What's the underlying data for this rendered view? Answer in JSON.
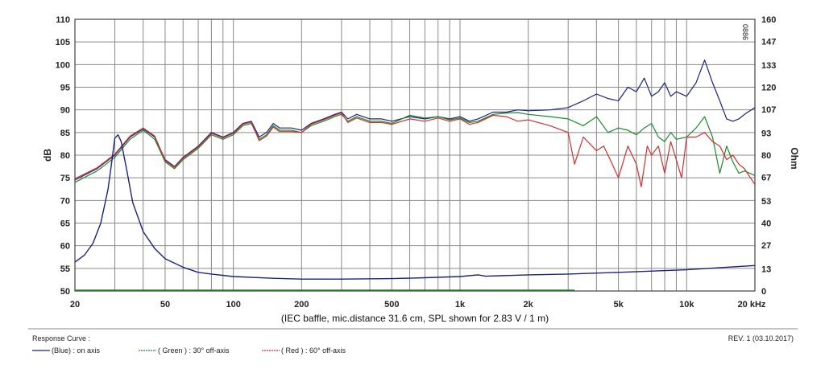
{
  "chart_data": {
    "type": "line",
    "x_scale": "log",
    "xlim": [
      20,
      20000
    ],
    "ylim": [
      50,
      110
    ],
    "y2lim": [
      0,
      160
    ],
    "grid": true,
    "ylabel": "dB",
    "y2label": "Ohm",
    "x_tick_labels": [
      {
        "value": 20,
        "label": "20"
      },
      {
        "value": 50,
        "label": "50"
      },
      {
        "value": 100,
        "label": "100"
      },
      {
        "value": 200,
        "label": "200"
      },
      {
        "value": 500,
        "label": "500"
      },
      {
        "value": 1000,
        "label": "1k"
      },
      {
        "value": 2000,
        "label": "2k"
      },
      {
        "value": 5000,
        "label": "5k"
      },
      {
        "value": 10000,
        "label": "10k"
      },
      {
        "value": 20000,
        "label": "20 kHz"
      }
    ],
    "y_ticks": [
      110,
      105,
      100,
      95,
      90,
      85,
      80,
      75,
      70,
      65,
      60,
      55,
      50
    ],
    "y2_ticks": [
      160,
      147,
      133,
      120,
      107,
      93,
      80,
      67,
      53,
      40,
      27,
      13,
      0
    ],
    "caption": "(IEC baffle, mic.distance 31.6 cm, SPL shown for 2.83 V / 1 m)",
    "watermark": "0886",
    "series": [
      {
        "name": "(Blue)  : on axis",
        "color": "#1a237e",
        "axis": "left",
        "points": [
          [
            20,
            74.5
          ],
          [
            25,
            77
          ],
          [
            30,
            80
          ],
          [
            35,
            84
          ],
          [
            40,
            85.8
          ],
          [
            45,
            84
          ],
          [
            50,
            79
          ],
          [
            55,
            77.5
          ],
          [
            60,
            79.5
          ],
          [
            70,
            82
          ],
          [
            80,
            85
          ],
          [
            90,
            84
          ],
          [
            100,
            85
          ],
          [
            110,
            87
          ],
          [
            120,
            87.5
          ],
          [
            130,
            84
          ],
          [
            140,
            85
          ],
          [
            150,
            87
          ],
          [
            160,
            86
          ],
          [
            180,
            86
          ],
          [
            200,
            85.5
          ],
          [
            220,
            87
          ],
          [
            250,
            88
          ],
          [
            280,
            89
          ],
          [
            300,
            89.5
          ],
          [
            320,
            88
          ],
          [
            350,
            89
          ],
          [
            400,
            88
          ],
          [
            450,
            88
          ],
          [
            500,
            87.5
          ],
          [
            600,
            88.5
          ],
          [
            700,
            88
          ],
          [
            800,
            88.5
          ],
          [
            900,
            88
          ],
          [
            1000,
            88.5
          ],
          [
            1100,
            87.5
          ],
          [
            1200,
            88
          ],
          [
            1400,
            89.5
          ],
          [
            1600,
            89.5
          ],
          [
            1800,
            90
          ],
          [
            2000,
            89.8
          ],
          [
            2500,
            90
          ],
          [
            3000,
            90.5
          ],
          [
            3500,
            92
          ],
          [
            4000,
            93.5
          ],
          [
            4500,
            92.5
          ],
          [
            5000,
            92
          ],
          [
            5500,
            95
          ],
          [
            6000,
            94
          ],
          [
            6500,
            97
          ],
          [
            7000,
            93
          ],
          [
            7500,
            94
          ],
          [
            8000,
            96
          ],
          [
            8500,
            93
          ],
          [
            9000,
            94
          ],
          [
            10000,
            93
          ],
          [
            11000,
            96
          ],
          [
            12000,
            101
          ],
          [
            13000,
            96
          ],
          [
            14000,
            92
          ],
          [
            15000,
            88
          ],
          [
            16000,
            87.5
          ],
          [
            17000,
            88
          ],
          [
            18000,
            89
          ],
          [
            20000,
            90.5
          ]
        ]
      },
      {
        "name": "( Green ) : 30° off-axis",
        "color": "#1b8a2a",
        "axis": "left",
        "points": [
          [
            20,
            74
          ],
          [
            25,
            76.5
          ],
          [
            30,
            79.5
          ],
          [
            35,
            83.5
          ],
          [
            40,
            85.5
          ],
          [
            45,
            83.5
          ],
          [
            50,
            78.5
          ],
          [
            55,
            77
          ],
          [
            60,
            79
          ],
          [
            70,
            81.5
          ],
          [
            80,
            84.5
          ],
          [
            90,
            83.5
          ],
          [
            100,
            84.5
          ],
          [
            110,
            86.5
          ],
          [
            120,
            87
          ],
          [
            130,
            83.5
          ],
          [
            140,
            84.5
          ],
          [
            150,
            86.5
          ],
          [
            160,
            85.5
          ],
          [
            180,
            85.5
          ],
          [
            200,
            85
          ],
          [
            220,
            86.5
          ],
          [
            250,
            87.5
          ],
          [
            280,
            88.5
          ],
          [
            300,
            89
          ],
          [
            320,
            87.5
          ],
          [
            350,
            88.5
          ],
          [
            400,
            87.5
          ],
          [
            450,
            87.5
          ],
          [
            500,
            87
          ],
          [
            600,
            88.8
          ],
          [
            700,
            88.2
          ],
          [
            800,
            88.5
          ],
          [
            900,
            87.8
          ],
          [
            1000,
            88.2
          ],
          [
            1100,
            87.2
          ],
          [
            1200,
            87.5
          ],
          [
            1400,
            89
          ],
          [
            1600,
            89.3
          ],
          [
            1800,
            89.4
          ],
          [
            2000,
            89
          ],
          [
            2500,
            88.5
          ],
          [
            3000,
            88
          ],
          [
            3500,
            86.5
          ],
          [
            4000,
            88.5
          ],
          [
            4500,
            85
          ],
          [
            5000,
            86
          ],
          [
            5500,
            85.5
          ],
          [
            6000,
            84.5
          ],
          [
            6500,
            86
          ],
          [
            7000,
            87
          ],
          [
            7500,
            84
          ],
          [
            8000,
            83
          ],
          [
            8500,
            85
          ],
          [
            9000,
            83.5
          ],
          [
            10000,
            84
          ],
          [
            11000,
            86
          ],
          [
            12000,
            88.5
          ],
          [
            13000,
            84
          ],
          [
            14000,
            76
          ],
          [
            15000,
            82
          ],
          [
            16000,
            78.5
          ],
          [
            17000,
            76
          ],
          [
            18000,
            76.5
          ],
          [
            20000,
            75.5
          ]
        ]
      },
      {
        "name": "( Red ) : 60° off-axis",
        "color": "#d32f2f",
        "axis": "left",
        "points": [
          [
            20,
            74.8
          ],
          [
            25,
            77.2
          ],
          [
            30,
            80.2
          ],
          [
            35,
            84.2
          ],
          [
            40,
            86
          ],
          [
            45,
            84.2
          ],
          [
            50,
            78.8
          ],
          [
            55,
            77.3
          ],
          [
            60,
            79.3
          ],
          [
            70,
            81.8
          ],
          [
            80,
            84.8
          ],
          [
            90,
            83.8
          ],
          [
            100,
            84.8
          ],
          [
            110,
            86.8
          ],
          [
            120,
            87.3
          ],
          [
            130,
            83.2
          ],
          [
            140,
            84.2
          ],
          [
            150,
            86.2
          ],
          [
            160,
            85.2
          ],
          [
            180,
            85.2
          ],
          [
            200,
            85
          ],
          [
            220,
            86.8
          ],
          [
            250,
            87.8
          ],
          [
            280,
            88.8
          ],
          [
            300,
            89.3
          ],
          [
            320,
            87.2
          ],
          [
            350,
            88.2
          ],
          [
            400,
            87.2
          ],
          [
            450,
            87.2
          ],
          [
            500,
            86.8
          ],
          [
            600,
            88
          ],
          [
            700,
            87.5
          ],
          [
            800,
            88.2
          ],
          [
            900,
            87.5
          ],
          [
            1000,
            88
          ],
          [
            1100,
            86.8
          ],
          [
            1200,
            87.2
          ],
          [
            1400,
            88.8
          ],
          [
            1600,
            88.5
          ],
          [
            1800,
            87.5
          ],
          [
            2000,
            87.8
          ],
          [
            2500,
            86.5
          ],
          [
            3000,
            85
          ],
          [
            3200,
            78
          ],
          [
            3500,
            84
          ],
          [
            4000,
            81
          ],
          [
            4300,
            82
          ],
          [
            4600,
            79
          ],
          [
            5000,
            75
          ],
          [
            5500,
            82
          ],
          [
            6000,
            78
          ],
          [
            6300,
            73
          ],
          [
            6700,
            82
          ],
          [
            7000,
            80
          ],
          [
            7500,
            82
          ],
          [
            8000,
            76
          ],
          [
            8500,
            83
          ],
          [
            9000,
            79
          ],
          [
            9500,
            75
          ],
          [
            10000,
            84
          ],
          [
            11000,
            84
          ],
          [
            12000,
            85
          ],
          [
            13000,
            83
          ],
          [
            14000,
            82
          ],
          [
            15000,
            79
          ],
          [
            16000,
            80
          ],
          [
            17000,
            78
          ],
          [
            18000,
            77
          ],
          [
            20000,
            73.5
          ]
        ]
      },
      {
        "name": "Impedance",
        "color": "#1a237e",
        "axis": "right",
        "points": [
          [
            20,
            17
          ],
          [
            22,
            21
          ],
          [
            24,
            28
          ],
          [
            26,
            40
          ],
          [
            28,
            60
          ],
          [
            29,
            75
          ],
          [
            30,
            90
          ],
          [
            31,
            92
          ],
          [
            32,
            88
          ],
          [
            34,
            70
          ],
          [
            36,
            52
          ],
          [
            40,
            35
          ],
          [
            45,
            25
          ],
          [
            50,
            19
          ],
          [
            60,
            14
          ],
          [
            70,
            11
          ],
          [
            80,
            10
          ],
          [
            100,
            8.5
          ],
          [
            150,
            7.5
          ],
          [
            200,
            7
          ],
          [
            300,
            7
          ],
          [
            500,
            7.3
          ],
          [
            700,
            7.8
          ],
          [
            1000,
            8.5
          ],
          [
            1200,
            9.5
          ],
          [
            1300,
            8.7
          ],
          [
            1500,
            9
          ],
          [
            2000,
            9.5
          ],
          [
            3000,
            10
          ],
          [
            5000,
            11
          ],
          [
            10000,
            12.5
          ],
          [
            15000,
            14
          ],
          [
            20000,
            15
          ]
        ]
      },
      {
        "name": "green-baseline",
        "color": "#1b8a2a",
        "axis": "left",
        "points": [
          [
            20,
            50.2
          ],
          [
            3200,
            50.2
          ]
        ]
      }
    ]
  },
  "footer": {
    "heading": "Response Curve :",
    "revision": "REV. 1 (03.10.2017)"
  }
}
